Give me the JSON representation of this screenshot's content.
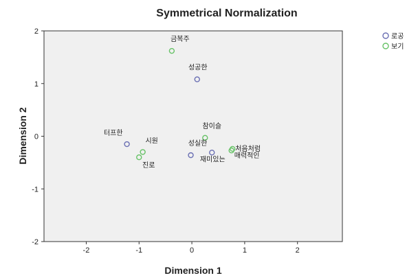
{
  "chart_data": {
    "type": "scatter",
    "title": "Symmetrical Normalization",
    "xlabel": "Dimension 1",
    "ylabel": "Dimension 2",
    "xlim": [
      -2.8,
      2.85
    ],
    "ylim": [
      -2,
      2
    ],
    "xticks": [
      -2,
      -1,
      0,
      1,
      2
    ],
    "yticks": [
      -2,
      -1,
      0,
      1,
      2
    ],
    "grid": false,
    "legend_position": "top-right",
    "series": [
      {
        "name": "로공",
        "color": "#6a6fb3",
        "points": [
          {
            "label": "성공한",
            "x": 0.1,
            "y": 1.08
          },
          {
            "label": "터프한",
            "x": -1.23,
            "y": -0.15
          },
          {
            "label": "성실한",
            "x": -0.02,
            "y": -0.36
          },
          {
            "label": "재미있는",
            "x": 0.38,
            "y": -0.31
          }
        ]
      },
      {
        "name": "보기",
        "color": "#66c266",
        "points": [
          {
            "label": "금복주",
            "x": -0.38,
            "y": 1.62
          },
          {
            "label": "참이슬",
            "x": 0.25,
            "y": -0.03
          },
          {
            "label": "시원",
            "x": -0.93,
            "y": -0.3
          },
          {
            "label": "진로",
            "x": -1.0,
            "y": -0.4
          },
          {
            "label": "처음처럼",
            "x": 0.77,
            "y": -0.24
          },
          {
            "label": "매력적인",
            "x": 0.75,
            "y": -0.27
          }
        ]
      }
    ]
  }
}
